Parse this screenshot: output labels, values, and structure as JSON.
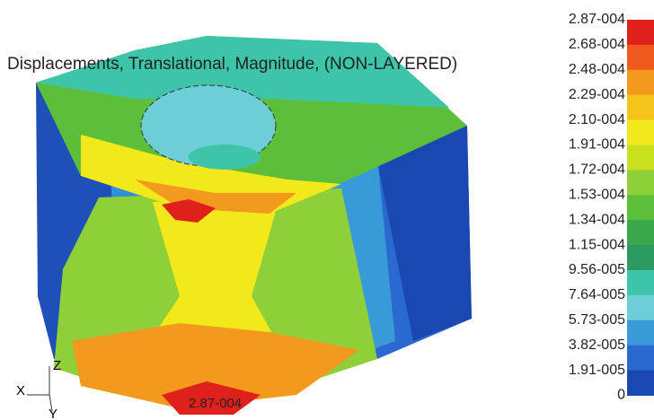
{
  "title": "Displacements, Translational, Magnitude, (NON-LAYERED)",
  "max_label": "2.87-004",
  "axes": {
    "x": "X",
    "y": "Y",
    "z": "Z"
  },
  "legend": {
    "labels": [
      "2.87-004",
      "2.68-004",
      "2.48-004",
      "2.29-004",
      "2.10-004",
      "1.91-004",
      "1.72-004",
      "1.53-004",
      "1.34-004",
      "1.15-004",
      "9.56-005",
      "7.64-005",
      "5.73-005",
      "3.82-005",
      "1.91-005",
      "0"
    ],
    "colors": [
      "#e0201a",
      "#f05a1e",
      "#f39a1e",
      "#f5c41a",
      "#f2e91a",
      "#c8e01e",
      "#8fd03a",
      "#5cbf3a",
      "#3aa84a",
      "#2a9a60",
      "#3ec4a8",
      "#6ccfd8",
      "#3a9ad8",
      "#2a6ad0",
      "#1a48b0"
    ]
  }
}
